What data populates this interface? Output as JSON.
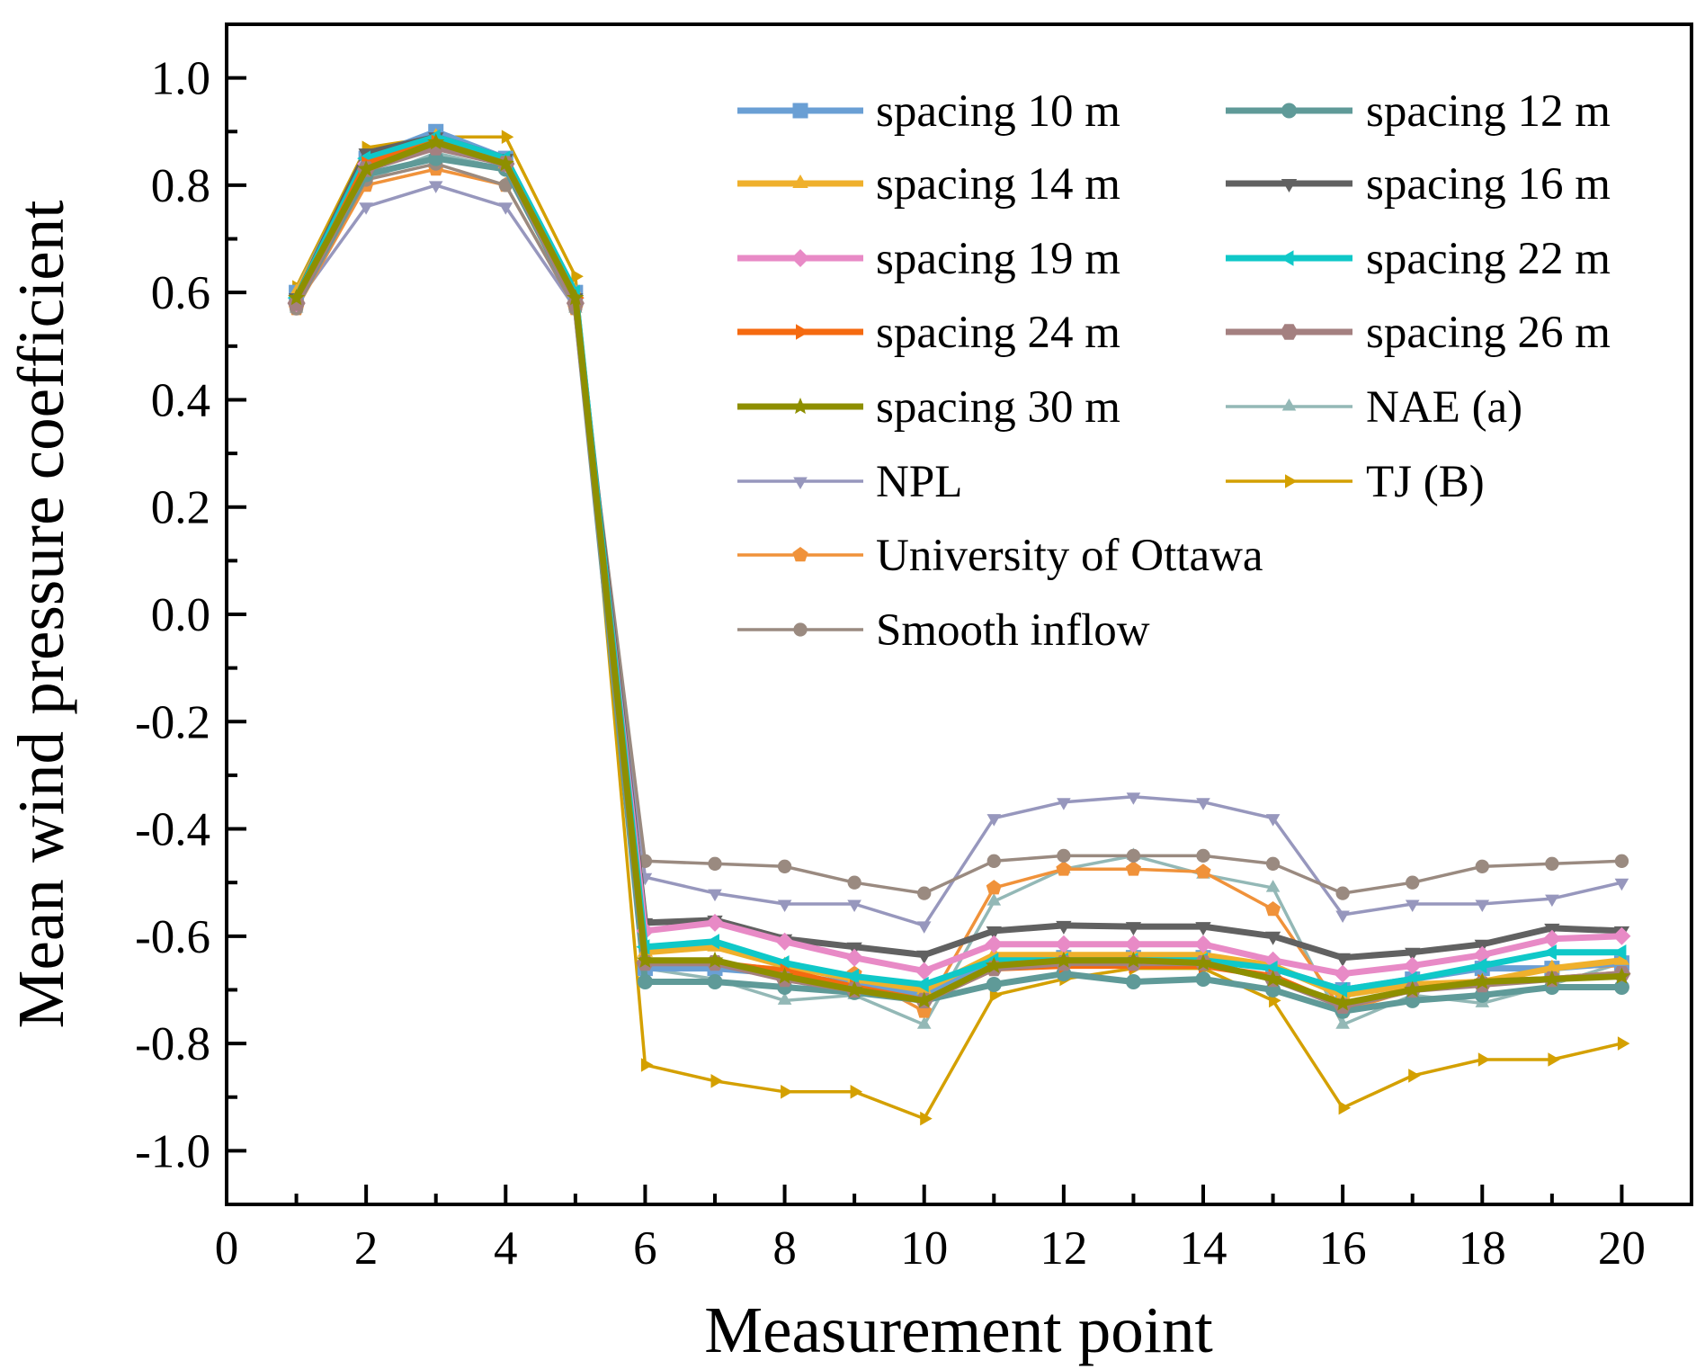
{
  "chart_data": {
    "type": "line",
    "title": "",
    "xlabel": "Measurement point",
    "ylabel": "Mean wind pressure coefficient",
    "xlim": [
      0,
      21
    ],
    "ylim": [
      -1.1,
      1.1
    ],
    "xticks": [
      0,
      2,
      4,
      6,
      8,
      10,
      12,
      14,
      16,
      18,
      20
    ],
    "yticks": [
      1.0,
      0.8,
      0.6,
      0.4,
      0.2,
      0.0,
      -0.2,
      -0.4,
      -0.6,
      -0.8,
      -1.0
    ],
    "ytick_labels": [
      "1.0",
      "0.8",
      "0.6",
      "0.4",
      "0.2",
      "0.0",
      "-0.2",
      "-0.4",
      "-0.6",
      "-0.8",
      "-1.0"
    ],
    "grid": false,
    "legend_position": "top-right",
    "x": [
      1,
      2,
      3,
      4,
      5,
      6,
      7,
      8,
      9,
      10,
      11,
      12,
      13,
      14,
      15,
      16,
      17,
      18,
      19,
      20
    ],
    "series": [
      {
        "name": "spacing 10 m",
        "color": "#6a9fd4",
        "marker": "square",
        "style": "thick",
        "values": [
          0.6,
          0.85,
          0.9,
          0.85,
          0.6,
          -0.66,
          -0.66,
          -0.67,
          -0.69,
          -0.71,
          -0.65,
          -0.64,
          -0.64,
          -0.64,
          -0.66,
          -0.7,
          -0.68,
          -0.66,
          -0.66,
          -0.65
        ]
      },
      {
        "name": "spacing 12 m",
        "color": "#5f9a98",
        "marker": "circle",
        "style": "thick",
        "values": [
          0.58,
          0.82,
          0.85,
          0.83,
          0.58,
          -0.685,
          -0.685,
          -0.695,
          -0.705,
          -0.72,
          -0.69,
          -0.67,
          -0.685,
          -0.68,
          -0.7,
          -0.74,
          -0.72,
          -0.71,
          -0.695,
          -0.695
        ]
      },
      {
        "name": "spacing 14 m",
        "color": "#efb02c",
        "marker": "triangle-up",
        "style": "thick",
        "values": [
          0.6,
          0.84,
          0.89,
          0.84,
          0.6,
          -0.63,
          -0.62,
          -0.655,
          -0.68,
          -0.7,
          -0.635,
          -0.635,
          -0.635,
          -0.635,
          -0.655,
          -0.71,
          -0.69,
          -0.685,
          -0.66,
          -0.645
        ]
      },
      {
        "name": "spacing 16 m",
        "color": "#616161",
        "marker": "triangle-down",
        "style": "thick",
        "values": [
          0.59,
          0.86,
          0.89,
          0.85,
          0.59,
          -0.575,
          -0.57,
          -0.605,
          -0.62,
          -0.635,
          -0.59,
          -0.58,
          -0.582,
          -0.582,
          -0.6,
          -0.64,
          -0.63,
          -0.615,
          -0.585,
          -0.59
        ]
      },
      {
        "name": "spacing 19 m",
        "color": "#e88ac6",
        "marker": "diamond",
        "style": "thick",
        "values": [
          0.58,
          0.84,
          0.88,
          0.84,
          0.58,
          -0.59,
          -0.575,
          -0.61,
          -0.64,
          -0.665,
          -0.615,
          -0.615,
          -0.615,
          -0.615,
          -0.645,
          -0.67,
          -0.655,
          -0.635,
          -0.605,
          -0.6
        ]
      },
      {
        "name": "spacing 22 m",
        "color": "#0fc8c8",
        "marker": "triangle-left",
        "style": "thick",
        "values": [
          0.59,
          0.85,
          0.89,
          0.85,
          0.6,
          -0.62,
          -0.61,
          -0.65,
          -0.675,
          -0.69,
          -0.645,
          -0.645,
          -0.645,
          -0.645,
          -0.66,
          -0.7,
          -0.68,
          -0.655,
          -0.63,
          -0.63
        ]
      },
      {
        "name": "spacing 24 m",
        "color": "#f56a10",
        "marker": "triangle-right",
        "style": "thick",
        "values": [
          0.58,
          0.84,
          0.88,
          0.84,
          0.59,
          -0.65,
          -0.65,
          -0.665,
          -0.695,
          -0.72,
          -0.66,
          -0.655,
          -0.655,
          -0.655,
          -0.675,
          -0.73,
          -0.7,
          -0.685,
          -0.68,
          -0.67
        ]
      },
      {
        "name": "spacing 26 m",
        "color": "#a48080",
        "marker": "hexagon",
        "style": "thick",
        "values": [
          0.58,
          0.83,
          0.87,
          0.84,
          0.58,
          -0.65,
          -0.65,
          -0.68,
          -0.7,
          -0.72,
          -0.66,
          -0.65,
          -0.65,
          -0.65,
          -0.68,
          -0.73,
          -0.7,
          -0.69,
          -0.68,
          -0.67
        ]
      },
      {
        "name": "spacing 30 m",
        "color": "#8e8f00",
        "marker": "star",
        "style": "thick",
        "values": [
          0.59,
          0.83,
          0.88,
          0.84,
          0.59,
          -0.645,
          -0.645,
          -0.675,
          -0.7,
          -0.72,
          -0.655,
          -0.645,
          -0.645,
          -0.65,
          -0.68,
          -0.725,
          -0.7,
          -0.685,
          -0.68,
          -0.675
        ]
      },
      {
        "name": "NAE (a)",
        "color": "#93b8b6",
        "marker": "triangle-up",
        "style": "thin",
        "values": [
          0.57,
          0.81,
          0.86,
          0.83,
          0.57,
          -0.66,
          -0.68,
          -0.72,
          -0.71,
          -0.765,
          -0.535,
          -0.475,
          -0.45,
          -0.485,
          -0.51,
          -0.765,
          -0.71,
          -0.725,
          -0.69,
          -0.65
        ]
      },
      {
        "name": "NPL",
        "color": "#9797bd",
        "marker": "triangle-down",
        "style": "thin",
        "values": [
          0.58,
          0.76,
          0.8,
          0.76,
          0.57,
          -0.49,
          -0.52,
          -0.54,
          -0.54,
          -0.58,
          -0.38,
          -0.35,
          -0.34,
          -0.35,
          -0.38,
          -0.56,
          -0.54,
          -0.54,
          -0.53,
          -0.5
        ]
      },
      {
        "name": "TJ (B)",
        "color": "#d4a000",
        "marker": "triangle-right",
        "style": "thin",
        "values": [
          0.61,
          0.87,
          0.89,
          0.89,
          0.63,
          -0.84,
          -0.87,
          -0.89,
          -0.89,
          -0.94,
          -0.71,
          -0.68,
          -0.66,
          -0.66,
          -0.72,
          -0.92,
          -0.86,
          -0.83,
          -0.83,
          -0.8
        ]
      },
      {
        "name": "University of Ottawa",
        "color": "#f0923a",
        "marker": "pentagon",
        "style": "thin",
        "values": [
          0.57,
          0.8,
          0.83,
          0.8,
          0.57,
          -0.65,
          -0.65,
          -0.66,
          -0.67,
          -0.74,
          -0.51,
          -0.475,
          -0.475,
          -0.48,
          -0.55,
          -0.74,
          -0.7,
          -0.685,
          -0.66,
          -0.655
        ]
      },
      {
        "name": "Smooth inflow",
        "color": "#9a8a80",
        "marker": "circle",
        "style": "thin",
        "values": [
          0.57,
          0.81,
          0.84,
          0.8,
          0.57,
          -0.46,
          -0.465,
          -0.47,
          -0.5,
          -0.52,
          -0.46,
          -0.45,
          -0.45,
          -0.45,
          -0.465,
          -0.52,
          -0.5,
          -0.47,
          -0.465,
          -0.46
        ]
      }
    ]
  }
}
